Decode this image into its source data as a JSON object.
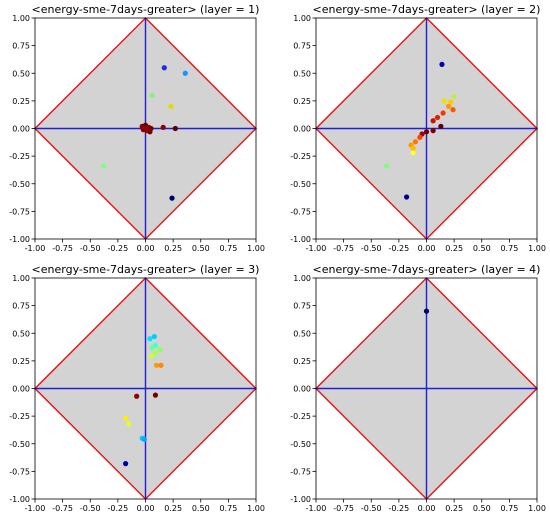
{
  "colors": {
    "diamond_fill": "#d3d3d3",
    "diamond_edge": "#e31a1c",
    "axis_lines": "#1f1fd6"
  },
  "chart_data": [
    {
      "type": "scatter",
      "title": "<energy-sme-7days-greater> (layer = 1)",
      "xlim": [
        -1.0,
        1.0
      ],
      "ylim": [
        -1.0,
        1.0
      ],
      "xticks": [
        "-1.00",
        "-0.75",
        "-0.50",
        "-0.25",
        "0.00",
        "0.25",
        "0.50",
        "0.75",
        "1.00"
      ],
      "yticks": [
        "1.00",
        "0.75",
        "0.50",
        "0.25",
        "0.00",
        "-0.25",
        "-0.50",
        "-0.75",
        "-1.00"
      ],
      "points": [
        {
          "x": 0.17,
          "y": 0.55,
          "color": "#1f2fe0"
        },
        {
          "x": 0.36,
          "y": 0.5,
          "color": "#1e90ff"
        },
        {
          "x": 0.06,
          "y": 0.3,
          "color": "#90ee7a"
        },
        {
          "x": 0.23,
          "y": 0.2,
          "color": "#e8d800"
        },
        {
          "x": 0.16,
          "y": 0.01,
          "color": "#8b0000"
        },
        {
          "x": 0.27,
          "y": 0.0,
          "color": "#5a0000"
        },
        {
          "x": -0.03,
          "y": 0.02,
          "color": "#8b0000"
        },
        {
          "x": 0.0,
          "y": 0.03,
          "color": "#6a0000"
        },
        {
          "x": 0.03,
          "y": 0.01,
          "color": "#9b0000"
        },
        {
          "x": 0.05,
          "y": 0.0,
          "color": "#7a0000"
        },
        {
          "x": -0.02,
          "y": -0.01,
          "color": "#8b0000"
        },
        {
          "x": 0.01,
          "y": -0.02,
          "color": "#a00000"
        },
        {
          "x": 0.04,
          "y": -0.03,
          "color": "#6a0000"
        },
        {
          "x": -0.38,
          "y": -0.34,
          "color": "#7cff7c"
        },
        {
          "x": 0.24,
          "y": -0.63,
          "color": "#00006a"
        }
      ]
    },
    {
      "type": "scatter",
      "title": "<energy-sme-7days-greater> (layer = 2)",
      "xlim": [
        -1.0,
        1.0
      ],
      "ylim": [
        -1.0,
        1.0
      ],
      "xticks": [
        "-1.00",
        "-0.75",
        "-0.50",
        "-0.25",
        "0.00",
        "0.25",
        "0.50",
        "0.75",
        "1.00"
      ],
      "yticks": [
        "1.00",
        "0.75",
        "0.50",
        "0.25",
        "0.00",
        "-0.25",
        "-0.50",
        "-0.75",
        "-1.00"
      ],
      "points": [
        {
          "x": 0.14,
          "y": 0.58,
          "color": "#0000aa"
        },
        {
          "x": 0.25,
          "y": 0.29,
          "color": "#b8f04a"
        },
        {
          "x": 0.16,
          "y": 0.25,
          "color": "#f0e000"
        },
        {
          "x": 0.22,
          "y": 0.24,
          "color": "#ffcc00"
        },
        {
          "x": 0.2,
          "y": 0.2,
          "color": "#ff9900"
        },
        {
          "x": 0.24,
          "y": 0.17,
          "color": "#ff5500"
        },
        {
          "x": 0.15,
          "y": 0.14,
          "color": "#ff3300"
        },
        {
          "x": 0.1,
          "y": 0.1,
          "color": "#e02000"
        },
        {
          "x": 0.06,
          "y": 0.07,
          "color": "#d01000"
        },
        {
          "x": 0.13,
          "y": 0.02,
          "color": "#600000"
        },
        {
          "x": 0.06,
          "y": -0.02,
          "color": "#800000"
        },
        {
          "x": 0.0,
          "y": -0.03,
          "color": "#700000"
        },
        {
          "x": -0.04,
          "y": -0.05,
          "color": "#a00000"
        },
        {
          "x": -0.06,
          "y": -0.08,
          "color": "#ff4400"
        },
        {
          "x": -0.1,
          "y": -0.12,
          "color": "#ff7700"
        },
        {
          "x": -0.14,
          "y": -0.15,
          "color": "#ff9900"
        },
        {
          "x": -0.12,
          "y": -0.18,
          "color": "#ffbb00"
        },
        {
          "x": -0.12,
          "y": -0.22,
          "color": "#ffff33"
        },
        {
          "x": -0.36,
          "y": -0.34,
          "color": "#7cff7c"
        },
        {
          "x": -0.18,
          "y": -0.62,
          "color": "#000088"
        }
      ]
    },
    {
      "type": "scatter",
      "title": "<energy-sme-7days-greater> (layer = 3)",
      "xlim": [
        -1.0,
        1.0
      ],
      "ylim": [
        -1.0,
        1.0
      ],
      "xticks": [
        "-1.00",
        "-0.75",
        "-0.50",
        "-0.25",
        "0.00",
        "0.25",
        "0.50",
        "0.75",
        "1.00"
      ],
      "yticks": [
        "1.00",
        "0.75",
        "0.50",
        "0.25",
        "0.00",
        "-0.25",
        "-0.50",
        "-0.75",
        "-1.00"
      ],
      "points": [
        {
          "x": 0.08,
          "y": 0.47,
          "color": "#00ccff"
        },
        {
          "x": 0.04,
          "y": 0.45,
          "color": "#00e5ff"
        },
        {
          "x": 0.09,
          "y": 0.39,
          "color": "#44ffcc"
        },
        {
          "x": 0.06,
          "y": 0.37,
          "color": "#66ff99"
        },
        {
          "x": 0.13,
          "y": 0.35,
          "color": "#88ff66"
        },
        {
          "x": 0.09,
          "y": 0.32,
          "color": "#aaff44"
        },
        {
          "x": 0.05,
          "y": 0.29,
          "color": "#ccff33"
        },
        {
          "x": 0.1,
          "y": 0.21,
          "color": "#ff9900"
        },
        {
          "x": 0.14,
          "y": 0.21,
          "color": "#ff8800"
        },
        {
          "x": 0.09,
          "y": -0.06,
          "color": "#700000"
        },
        {
          "x": -0.08,
          "y": -0.07,
          "color": "#8b0000"
        },
        {
          "x": -0.18,
          "y": -0.27,
          "color": "#ffee00"
        },
        {
          "x": -0.15,
          "y": -0.32,
          "color": "#ddff22"
        },
        {
          "x": -0.03,
          "y": -0.45,
          "color": "#00ccff"
        },
        {
          "x": -0.01,
          "y": -0.46,
          "color": "#00aaff"
        },
        {
          "x": -0.18,
          "y": -0.68,
          "color": "#0000aa"
        }
      ]
    },
    {
      "type": "scatter",
      "title": "<energy-sme-7days-greater> (layer = 4)",
      "xlim": [
        -1.0,
        1.0
      ],
      "ylim": [
        -1.0,
        1.0
      ],
      "xticks": [
        "-1.00",
        "-0.75",
        "-0.50",
        "-0.25",
        "0.00",
        "0.25",
        "0.50",
        "0.75",
        "1.00"
      ],
      "yticks": [
        "1.00",
        "0.75",
        "0.50",
        "0.25",
        "0.00",
        "-0.25",
        "-0.50",
        "-0.75",
        "-1.00"
      ],
      "points": [
        {
          "x": 0.0,
          "y": 0.7,
          "color": "#00006a"
        }
      ]
    }
  ]
}
